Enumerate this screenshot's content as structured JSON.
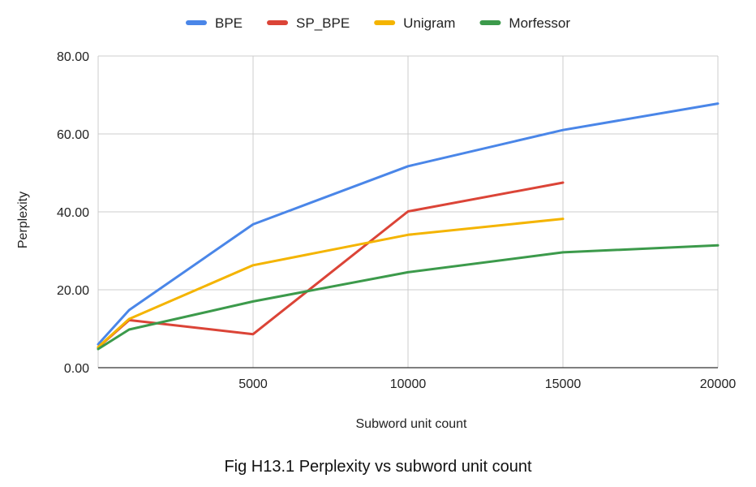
{
  "chart_data": {
    "type": "line",
    "xlabel": "Subword unit count",
    "ylabel": "Perplexity",
    "xlim": [
      0,
      20000
    ],
    "ylim": [
      0,
      80
    ],
    "x_ticks": [
      "5000",
      "10000",
      "15000",
      "20000"
    ],
    "y_ticks": [
      "0.00",
      "20.00",
      "40.00",
      "60.00",
      "80.00"
    ],
    "grid": true,
    "legend_position": "top",
    "series": [
      {
        "name": "BPE",
        "color": "#4a86e8",
        "x": [
          0,
          1000,
          5000,
          10000,
          15000,
          20000
        ],
        "values": [
          6.0,
          14.8,
          36.8,
          51.7,
          61.0,
          67.8
        ]
      },
      {
        "name": "SP_BPE",
        "color": "#db4437",
        "x": [
          0,
          1000,
          5000,
          10000,
          15000
        ],
        "values": [
          5.2,
          12.2,
          8.6,
          40.1,
          47.5
        ]
      },
      {
        "name": "Unigram",
        "color": "#f4b400",
        "x": [
          0,
          1000,
          5000,
          10000,
          15000
        ],
        "values": [
          5.3,
          12.5,
          26.3,
          34.1,
          38.2
        ]
      },
      {
        "name": "Morfessor",
        "color": "#3c9a4b",
        "x": [
          0,
          1000,
          5000,
          10000,
          15000,
          20000
        ],
        "values": [
          4.8,
          9.8,
          17.0,
          24.5,
          29.6,
          31.4
        ]
      }
    ]
  },
  "caption": "Fig H13.1 Perplexity vs subword unit count"
}
